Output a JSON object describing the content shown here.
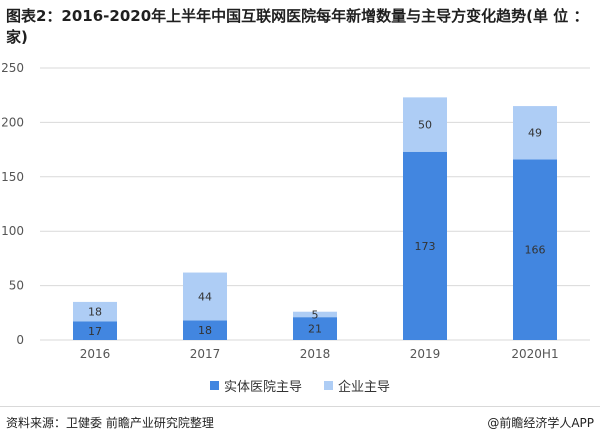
{
  "title": "图表2：2016-2020年上半年中国互联网医院每年新增数量与主导方变化趋势(单 位 ：家)",
  "footer": {
    "source": "资料来源：卫健委 前瞻产业研究院整理",
    "credit": "@前瞻经济学人APP"
  },
  "colors": {
    "series1": "#4286e0",
    "series2": "#aecdf5",
    "grid": "#d9d9d9",
    "axis_text": "#555555"
  },
  "chart_data": {
    "type": "bar",
    "stacked": true,
    "categories": [
      "2016",
      "2017",
      "2018",
      "2019",
      "2020H1"
    ],
    "series": [
      {
        "name": "实体医院主导",
        "values": [
          17,
          18,
          21,
          173,
          166
        ]
      },
      {
        "name": "企业主导",
        "values": [
          18,
          44,
          5,
          50,
          49
        ]
      }
    ],
    "ylim": [
      0,
      250
    ],
    "yticks": [
      0,
      50,
      100,
      150,
      200,
      250
    ],
    "grid": true,
    "legend_position": "bottom"
  }
}
